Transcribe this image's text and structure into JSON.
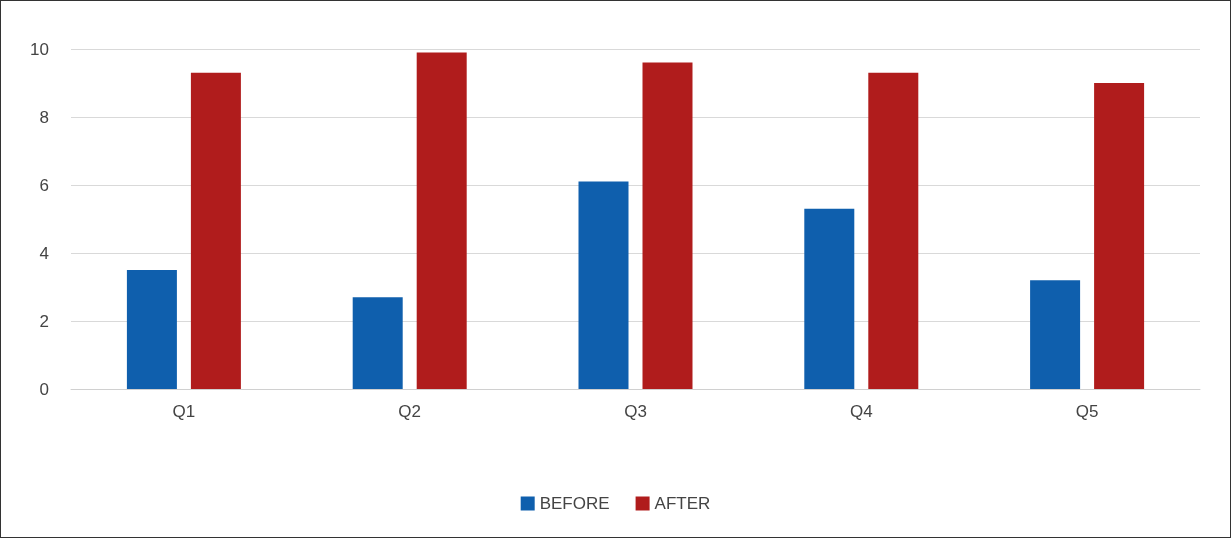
{
  "chart_data": {
    "type": "bar",
    "categories": [
      "Q1",
      "Q2",
      "Q3",
      "Q4",
      "Q5"
    ],
    "series": [
      {
        "name": "BEFORE",
        "color": "#0f5fad",
        "values": [
          3.5,
          2.7,
          6.1,
          5.3,
          3.2
        ]
      },
      {
        "name": "AFTER",
        "color": "#b01c1c",
        "values": [
          9.3,
          9.9,
          9.6,
          9.3,
          9.0
        ]
      }
    ],
    "ylim": [
      0,
      10
    ],
    "yticks": [
      0,
      2,
      4,
      6,
      8,
      10
    ],
    "grid": "y",
    "legend": "bottom"
  }
}
